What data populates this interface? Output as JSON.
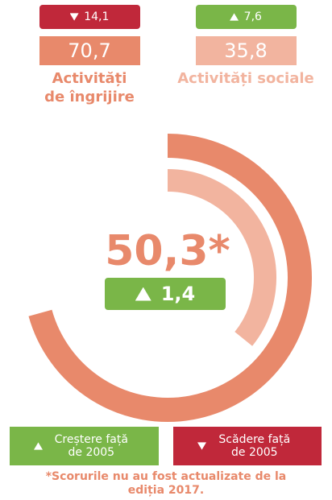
{
  "chart_data": {
    "type": "radial_bar",
    "ylim": [
      0,
      100
    ],
    "total": {
      "value": 50.3,
      "label": "50,3*",
      "change": 1.4,
      "change_label": "1,4"
    },
    "series": [
      {
        "name": "Activități de îngrijire",
        "color": "#e8896b",
        "values": [
          70.7
        ],
        "value_labels": [
          "70,7"
        ],
        "changes": [
          -14.1
        ],
        "change_labels": [
          "14,1"
        ]
      },
      {
        "name": "Activități sociale",
        "color": "#f2b49f",
        "values": [
          35.8
        ],
        "value_labels": [
          "35,8"
        ],
        "changes": [
          7.6
        ],
        "change_labels": [
          "7,6"
        ]
      }
    ],
    "legend": [
      {
        "name": "Creștere față de 2005",
        "color": "#7ab648"
      },
      {
        "name": "Scădere față de 2005",
        "color": "#c0283a"
      }
    ],
    "note": "*Scorurile nu au fost actualizate de la ediția 2017."
  }
}
